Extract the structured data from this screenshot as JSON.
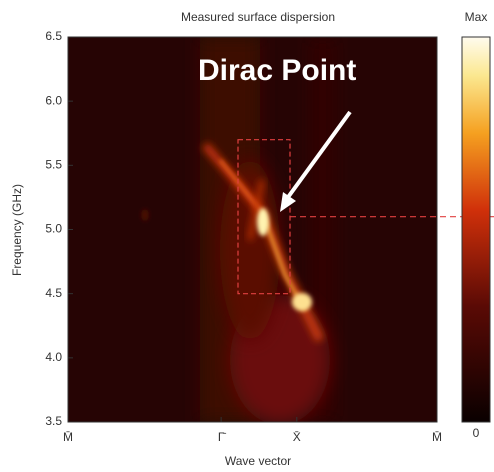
{
  "chart_data": {
    "type": "heatmap",
    "title": "Measured surface dispersion",
    "y_label": "Frequency (GHz)",
    "x_label": "Wave vector",
    "x_tick_labels": [
      "M̄",
      "Γ̄",
      "X̄",
      "M̄"
    ],
    "ylim": [
      3.5,
      6.5
    ],
    "yticks": [
      3.5,
      {
        "value": 4,
        "label": "4.0"
      },
      4.5,
      {
        "value": 5,
        "label": "5.0"
      },
      5.5,
      {
        "value": 6,
        "label": "6.0"
      },
      6.5
    ],
    "colorbar_labels": {
      "max": "Max",
      "min": "0"
    },
    "annotation": {
      "text": "Dirac Point",
      "frequency": 5.1
    },
    "highlight_ylim": [
      4.5,
      5.7
    ]
  }
}
